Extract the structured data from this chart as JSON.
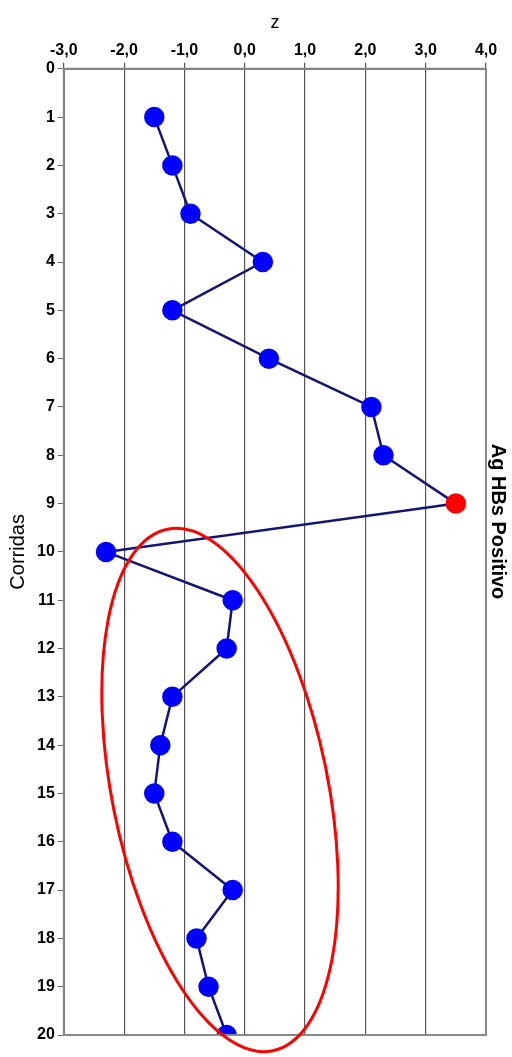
{
  "chart_data": {
    "type": "line",
    "title": "Ag HBs Positivo",
    "xlabel": "z",
    "ylabel": "Corridas",
    "series": [
      {
        "color": "#141478",
        "colors": [
          "#0000ff",
          "#0000ff",
          "#0000ff",
          "#0000ff",
          "#0000ff",
          "#0000ff",
          "#0000ff",
          "#0000ff",
          "#ff0000",
          "#0000ff",
          "#0000ff",
          "#0000ff",
          "#0000ff",
          "#0000ff",
          "#0000ff",
          "#0000ff",
          "#0000ff",
          "#0000ff",
          "#0000ff",
          "#0000ff"
        ],
        "x": [
          -1.5,
          -1.2,
          -0.9,
          0.3,
          -1.2,
          0.4,
          2.1,
          2.3,
          3.5,
          -2.3,
          -0.2,
          -0.3,
          -1.2,
          -1.4,
          -1.5,
          -1.2,
          -0.2,
          -0.8,
          -0.6,
          -0.3
        ],
        "values": [
          1,
          2,
          3,
          4,
          5,
          6,
          7,
          8,
          9,
          10,
          11,
          12,
          13,
          14,
          15,
          16,
          17,
          18,
          19,
          20
        ]
      }
    ],
    "xlim": [
      -3,
      4
    ],
    "xticks": [
      {
        "value": -3,
        "label": "-3,0"
      },
      {
        "value": -2,
        "label": "-2,0"
      },
      {
        "value": -1,
        "label": "-1,0"
      },
      {
        "value": 0,
        "label": "0,0"
      },
      {
        "value": 1,
        "label": "1,0"
      },
      {
        "value": 2,
        "label": "2,0"
      },
      {
        "value": 3,
        "label": "3,0"
      },
      {
        "value": 4,
        "label": "4,0"
      }
    ],
    "ylim": [
      20,
      0
    ],
    "yticks": [
      0,
      1,
      2,
      3,
      4,
      5,
      6,
      7,
      8,
      9,
      10,
      11,
      12,
      13,
      14,
      15,
      16,
      17,
      18,
      19,
      20
    ],
    "grid": "x",
    "marker": "circle",
    "line_style": "solid"
  }
}
